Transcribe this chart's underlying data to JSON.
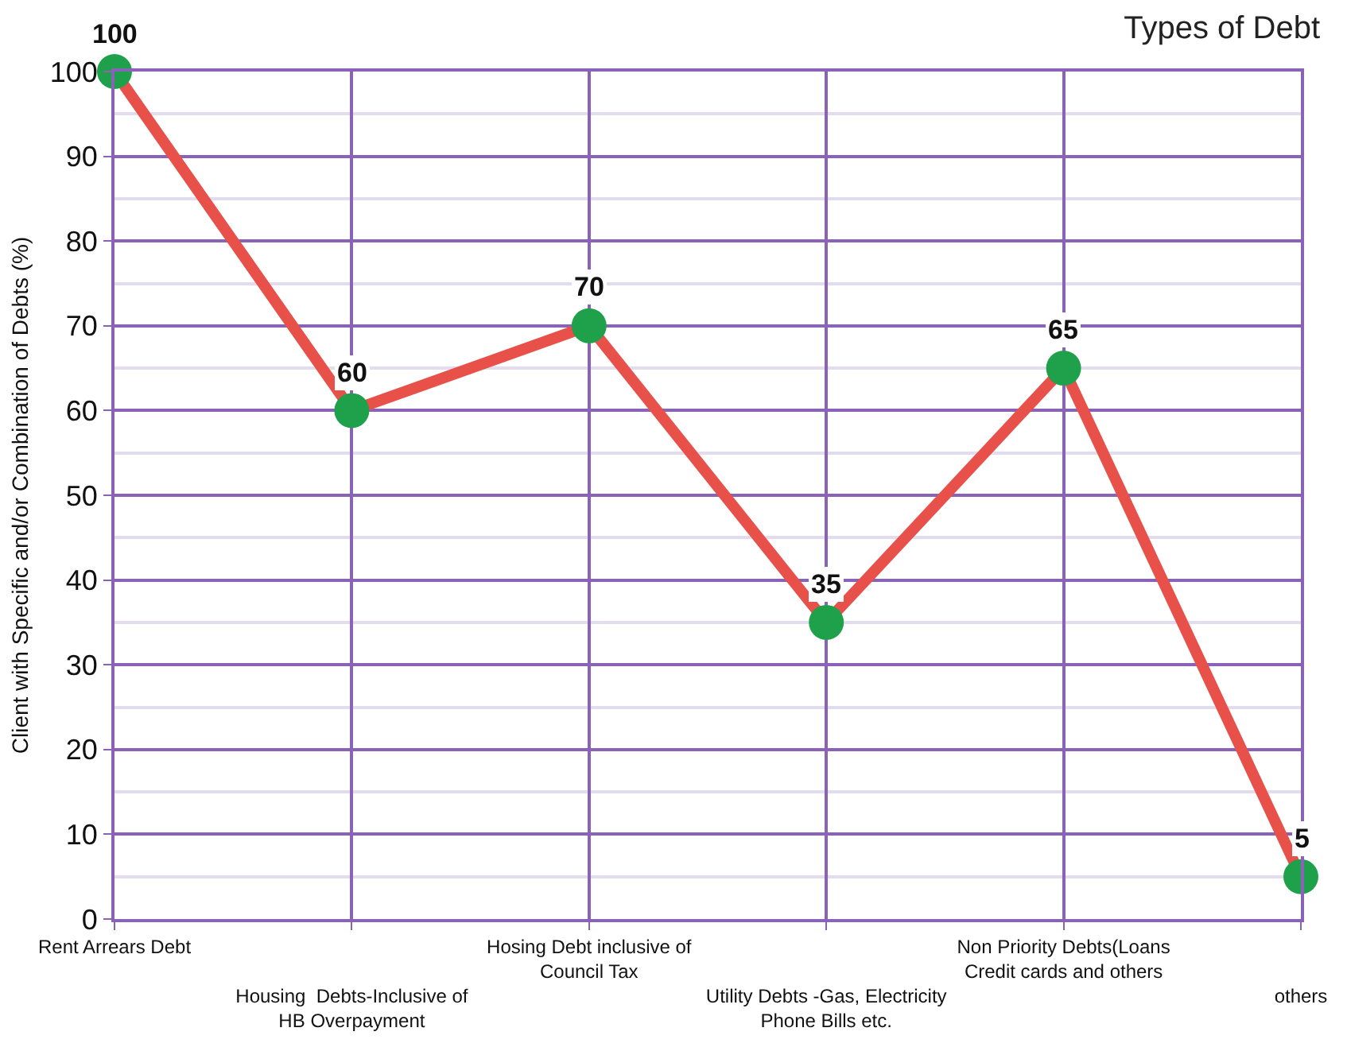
{
  "chart_data": {
    "type": "line",
    "title": "Types of Debt",
    "ylabel": "Client with Specific and/or Combination of Debts (%)",
    "categories": [
      "Rent Arrears Debt",
      "Housing  Debts-Inclusive of\nHB Overpayment",
      "Hosing Debt inclusive of\nCouncil Tax",
      "Utility Debts -Gas, Electricity\nPhone Bills etc.",
      "Non Priority Debts(Loans\nCredit cards and others",
      "others"
    ],
    "series": [
      {
        "color": "#e8504a",
        "values": [
          100,
          60,
          70,
          35,
          65,
          5
        ]
      }
    ],
    "ylim": [
      0,
      100
    ],
    "yticks": [
      0,
      10,
      20,
      30,
      40,
      50,
      60,
      70,
      80,
      90,
      100
    ],
    "grid": true,
    "marker": "circle",
    "line_style": "solid",
    "data_labels": true
  }
}
